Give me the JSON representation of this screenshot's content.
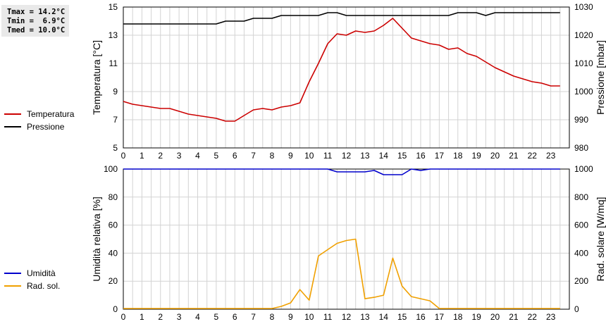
{
  "stats": {
    "tmax": "Tmax = 14.2°C",
    "tmin": "Tmin =  6.9°C",
    "tmed": "Tmed = 10.0°C"
  },
  "chart_data": [
    {
      "type": "line",
      "x": [
        0,
        0.5,
        1,
        1.5,
        2,
        2.5,
        3,
        3.5,
        4,
        4.5,
        5,
        5.5,
        6,
        6.5,
        7,
        7.5,
        8,
        8.5,
        9,
        9.5,
        10,
        10.5,
        11,
        11.5,
        12,
        12.5,
        13,
        13.5,
        14,
        14.5,
        15,
        15.5,
        16,
        16.5,
        17,
        17.5,
        18,
        18.5,
        19,
        19.5,
        20,
        20.5,
        21,
        21.5,
        22,
        22.5,
        23,
        23.5
      ],
      "series": [
        {
          "name": "Temperatura",
          "axis": "left",
          "color": "#cc0000",
          "values": [
            8.3,
            8.1,
            8.0,
            7.9,
            7.8,
            7.8,
            7.6,
            7.4,
            7.3,
            7.2,
            7.1,
            6.9,
            6.9,
            7.3,
            7.7,
            7.8,
            7.7,
            7.9,
            8.0,
            8.2,
            9.7,
            11.0,
            12.4,
            13.1,
            13.0,
            13.3,
            13.2,
            13.3,
            13.7,
            14.2,
            13.5,
            12.8,
            12.6,
            12.4,
            12.3,
            12.0,
            12.1,
            11.7,
            11.5,
            11.1,
            10.7,
            10.4,
            10.1,
            9.9,
            9.7,
            9.6,
            9.4,
            9.4
          ]
        },
        {
          "name": "Pressione",
          "axis": "right",
          "color": "#000000",
          "values": [
            1024,
            1024,
            1024,
            1024,
            1024,
            1024,
            1024,
            1024,
            1024,
            1024,
            1024,
            1025,
            1025,
            1025,
            1026,
            1026,
            1026,
            1027,
            1027,
            1027,
            1027,
            1027,
            1028,
            1028,
            1027,
            1027,
            1027,
            1027,
            1027,
            1027,
            1027,
            1027,
            1027,
            1027,
            1027,
            1027,
            1028,
            1028,
            1028,
            1027,
            1028,
            1028,
            1028,
            1028,
            1028,
            1028,
            1028,
            1028
          ]
        }
      ],
      "y_left": {
        "label": "Temperatura [°C]",
        "ticks": [
          "5",
          "7",
          "9",
          "11",
          "13",
          "15"
        ],
        "range": [
          5,
          15
        ]
      },
      "y_right": {
        "label": "Pressione [mbar]",
        "ticks": [
          "980",
          "990",
          "1000",
          "1010",
          "1020",
          "1030"
        ],
        "range": [
          980,
          1030
        ]
      },
      "x_ticks": [
        "0",
        "1",
        "2",
        "3",
        "4",
        "5",
        "6",
        "7",
        "8",
        "9",
        "10",
        "11",
        "12",
        "13",
        "14",
        "15",
        "16",
        "17",
        "18",
        "19",
        "20",
        "21",
        "22",
        "23"
      ],
      "x_range": [
        0,
        24
      ],
      "grid": true,
      "legend": [
        {
          "label": "Temperatura",
          "color": "#cc0000"
        },
        {
          "label": "Pressione",
          "color": "#000000"
        }
      ]
    },
    {
      "type": "line",
      "x": [
        0,
        0.5,
        1,
        1.5,
        2,
        2.5,
        3,
        3.5,
        4,
        4.5,
        5,
        5.5,
        6,
        6.5,
        7,
        7.5,
        8,
        8.5,
        9,
        9.5,
        10,
        10.5,
        11,
        11.5,
        12,
        12.5,
        13,
        13.5,
        14,
        14.5,
        15,
        15.5,
        16,
        16.5,
        17,
        17.5,
        18,
        18.5,
        19,
        19.5,
        20,
        20.5,
        21,
        21.5,
        22,
        22.5,
        23,
        23.5
      ],
      "series": [
        {
          "name": "Umidità",
          "axis": "left",
          "color": "#0000cc",
          "values": [
            100,
            100,
            100,
            100,
            100,
            100,
            100,
            100,
            100,
            100,
            100,
            100,
            100,
            100,
            100,
            100,
            100,
            100,
            100,
            100,
            100,
            100,
            100,
            98,
            98,
            98,
            98,
            99,
            96,
            96,
            96,
            100,
            99,
            100,
            100,
            100,
            100,
            100,
            100,
            100,
            100,
            100,
            100,
            100,
            100,
            100,
            100,
            100
          ]
        },
        {
          "name": "Rad. sol.",
          "axis": "right",
          "color": "#f0a000",
          "values": [
            5,
            5,
            5,
            5,
            5,
            5,
            5,
            5,
            5,
            5,
            5,
            5,
            5,
            5,
            5,
            5,
            5,
            20,
            45,
            140,
            65,
            380,
            425,
            470,
            490,
            500,
            75,
            85,
            100,
            365,
            165,
            90,
            75,
            60,
            5,
            5,
            5,
            5,
            5,
            5,
            5,
            5,
            5,
            5,
            5,
            5,
            5,
            5
          ]
        }
      ],
      "y_left": {
        "label": "Umidità relativa [%]",
        "ticks": [
          "0",
          "20",
          "40",
          "60",
          "80",
          "100"
        ],
        "range": [
          0,
          100
        ]
      },
      "y_right": {
        "label": "Rad. solare [W/mq]",
        "ticks": [
          "0",
          "200",
          "400",
          "600",
          "800",
          "1000"
        ],
        "range": [
          0,
          1000
        ]
      },
      "x_ticks": [
        "0",
        "1",
        "2",
        "3",
        "4",
        "5",
        "6",
        "7",
        "8",
        "9",
        "10",
        "11",
        "12",
        "13",
        "14",
        "15",
        "16",
        "17",
        "18",
        "19",
        "20",
        "21",
        "22",
        "23"
      ],
      "x_range": [
        0,
        24
      ],
      "grid": true,
      "legend": [
        {
          "label": "Umidità",
          "color": "#0000cc"
        },
        {
          "label": "Rad. sol.",
          "color": "#f0a000"
        }
      ]
    }
  ]
}
